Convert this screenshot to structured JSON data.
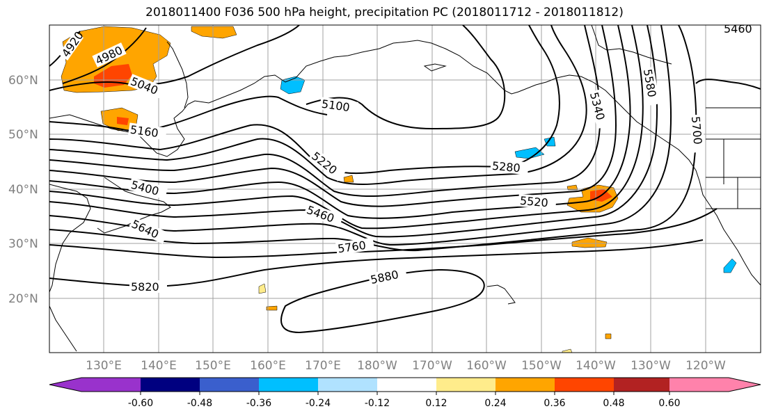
{
  "title": "2018011400 F036 500 hPa height, precipitation PC (2018011712 - 2018011812)",
  "map": {
    "lat_labels": [
      "60°N",
      "50°N",
      "40°N",
      "30°N",
      "20°N"
    ],
    "lon_labels": [
      "130°E",
      "140°E",
      "150°E",
      "160°E",
      "170°E",
      "180°W",
      "170°W",
      "160°W",
      "150°W",
      "140°W",
      "130°W",
      "120°W"
    ],
    "contour_labels": [
      "4920",
      "4980",
      "5040",
      "5100",
      "5160",
      "5220",
      "5280",
      "5340",
      "5400",
      "5460",
      "5520",
      "5580",
      "5640",
      "5700",
      "5760",
      "5820",
      "5880",
      "5460"
    ],
    "height_contour_color": "#000000",
    "coastline_color": "#000000",
    "grid_color": "#a0a0a0"
  },
  "colorbar": {
    "colors": [
      "#9932cc",
      "#000080",
      "#3a5fcd",
      "#00bfff",
      "#b0e2ff",
      "#ffffff",
      "#ffec8b",
      "#ffa500",
      "#ff4500",
      "#b22222",
      "#ff82ab"
    ],
    "tick_labels": [
      "-0.60",
      "-0.48",
      "-0.36",
      "-0.24",
      "-0.12",
      "0.12",
      "0.24",
      "0.36",
      "0.48",
      "0.60"
    ]
  }
}
